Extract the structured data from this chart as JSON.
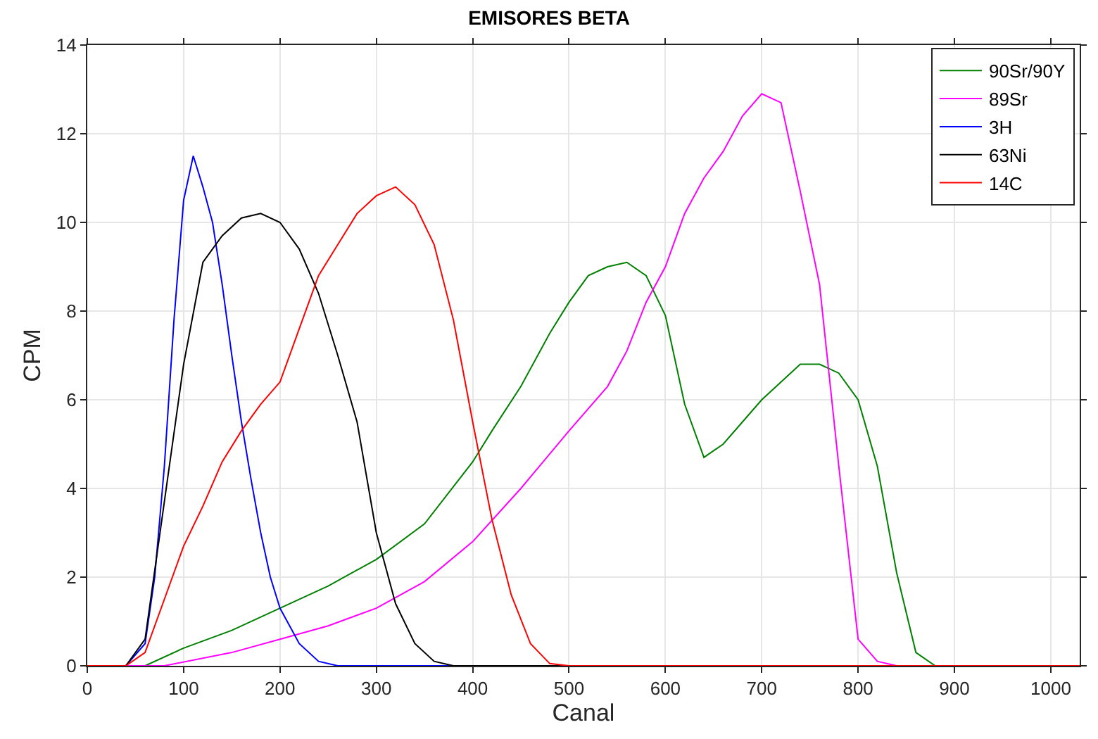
{
  "chart_data": {
    "type": "line",
    "title": "EMISORES BETA",
    "xlabel": "Canal",
    "ylabel": "CPM",
    "xlim": [
      0,
      1030
    ],
    "ylim": [
      0,
      14
    ],
    "xticks": [
      0,
      100,
      200,
      300,
      400,
      500,
      600,
      700,
      800,
      900,
      1000
    ],
    "yticks": [
      0,
      2,
      4,
      6,
      8,
      10,
      12,
      14
    ],
    "grid": true,
    "legend": "top right",
    "marker": "none",
    "line_style": "solid",
    "series": [
      {
        "name": "90Sr/90Y",
        "color": "#008000",
        "x": [
          0,
          60,
          100,
          150,
          200,
          250,
          300,
          350,
          400,
          420,
          450,
          480,
          500,
          520,
          540,
          560,
          580,
          600,
          620,
          640,
          660,
          680,
          700,
          720,
          740,
          760,
          780,
          800,
          820,
          840,
          860,
          880,
          1030
        ],
        "values": [
          0,
          0,
          0.4,
          0.8,
          1.3,
          1.8,
          2.4,
          3.2,
          4.6,
          5.3,
          6.3,
          7.5,
          8.2,
          8.8,
          9.0,
          9.1,
          8.8,
          7.9,
          5.9,
          4.7,
          5.0,
          5.5,
          6.0,
          6.4,
          6.8,
          6.8,
          6.6,
          6.0,
          4.5,
          2.1,
          0.3,
          0,
          0
        ]
      },
      {
        "name": "89Sr",
        "color": "#ff00ff",
        "x": [
          0,
          80,
          150,
          200,
          250,
          300,
          350,
          400,
          450,
          500,
          540,
          560,
          580,
          600,
          620,
          640,
          660,
          680,
          700,
          720,
          740,
          760,
          780,
          800,
          820,
          840,
          1030
        ],
        "values": [
          0,
          0,
          0.3,
          0.6,
          0.9,
          1.3,
          1.9,
          2.8,
          4.0,
          5.3,
          6.3,
          7.1,
          8.2,
          9.0,
          10.2,
          11.0,
          11.6,
          12.4,
          12.9,
          12.7,
          10.7,
          8.6,
          4.5,
          0.6,
          0.1,
          0,
          0
        ]
      },
      {
        "name": "3H",
        "color": "#0000ff",
        "x": [
          0,
          40,
          60,
          70,
          80,
          90,
          100,
          110,
          120,
          130,
          140,
          150,
          160,
          170,
          180,
          190,
          200,
          220,
          240,
          260,
          1030
        ],
        "values": [
          0,
          0,
          0.5,
          2,
          4.5,
          7.8,
          10.5,
          11.5,
          10.8,
          10.0,
          8.6,
          7.0,
          5.5,
          4.2,
          3.0,
          2.0,
          1.3,
          0.5,
          0.1,
          0,
          0
        ]
      },
      {
        "name": "63Ni",
        "color": "#000000",
        "x": [
          0,
          40,
          60,
          80,
          100,
          120,
          140,
          160,
          180,
          200,
          220,
          240,
          260,
          280,
          300,
          320,
          340,
          360,
          380,
          1030
        ],
        "values": [
          0,
          0,
          0.6,
          3.7,
          6.8,
          9.1,
          9.7,
          10.1,
          10.2,
          10.0,
          9.4,
          8.4,
          7.0,
          5.5,
          3.0,
          1.4,
          0.5,
          0.1,
          0,
          0
        ]
      },
      {
        "name": "14C",
        "color": "#ff0000",
        "x": [
          0,
          40,
          60,
          80,
          100,
          120,
          140,
          160,
          180,
          200,
          220,
          240,
          260,
          280,
          300,
          320,
          340,
          360,
          380,
          400,
          420,
          440,
          460,
          480,
          500,
          1030
        ],
        "values": [
          0,
          0,
          0.3,
          1.5,
          2.7,
          3.6,
          4.6,
          5.3,
          5.9,
          6.4,
          7.6,
          8.8,
          9.5,
          10.2,
          10.6,
          10.8,
          10.4,
          9.5,
          7.8,
          5.5,
          3.3,
          1.6,
          0.5,
          0.05,
          0,
          0
        ]
      }
    ]
  }
}
